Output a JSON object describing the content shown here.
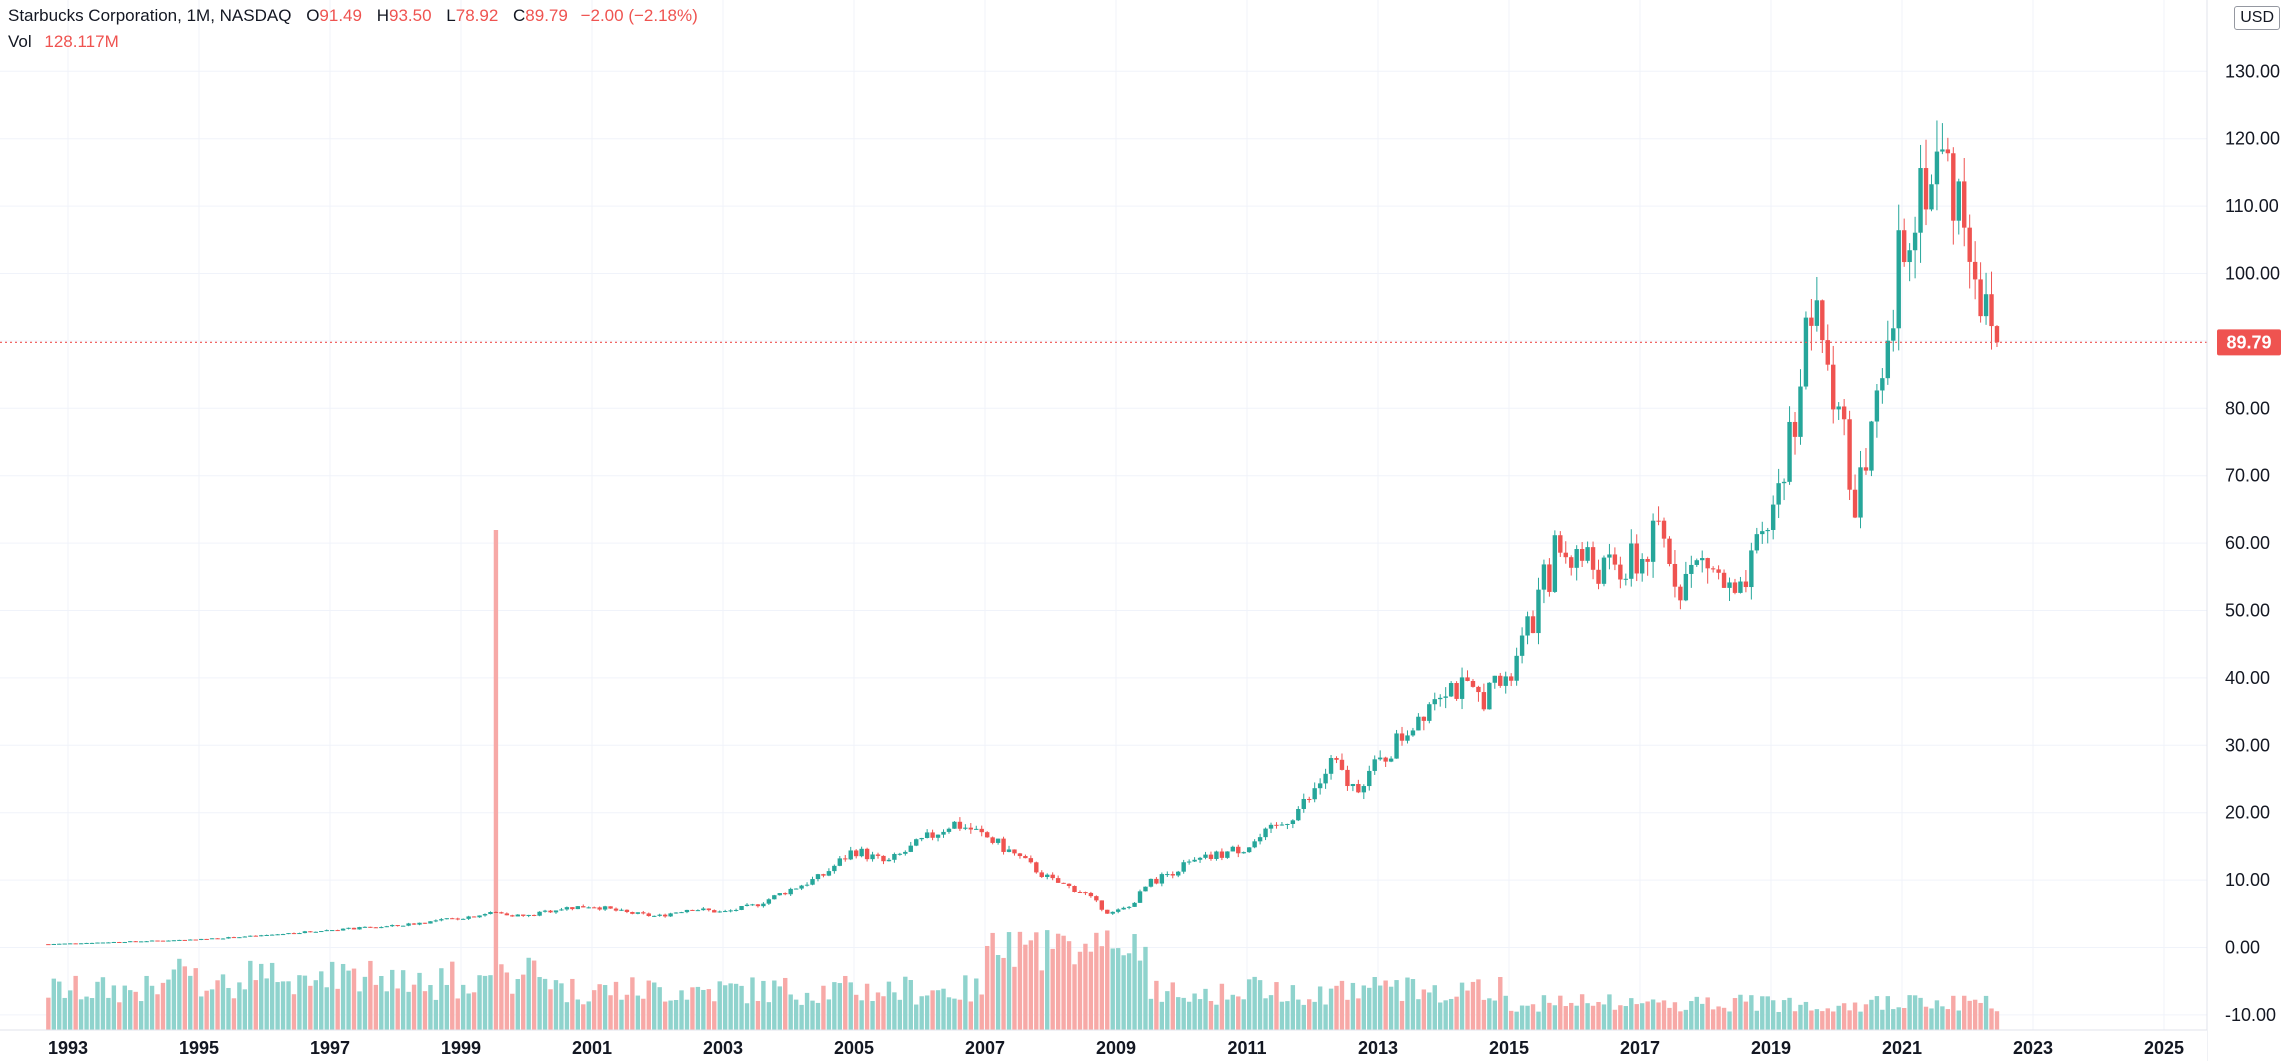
{
  "header": {
    "symbol": "Starbucks Corporation, 1M, NASDAQ",
    "open_label": "O",
    "open": "91.49",
    "high_label": "H",
    "high": "93.50",
    "low_label": "L",
    "low": "78.92",
    "close_label": "C",
    "close": "89.79",
    "change": "−2.00 (−2.18%)",
    "vol_label": "Vol",
    "vol": "128.117M"
  },
  "currency": "USD",
  "price_tag": "89.79",
  "colors": {
    "up": "#26a69a",
    "down": "#ef5350",
    "vol_up": "#8fd3cd",
    "vol_down": "#f7a9a7",
    "grid": "#f0f3fa"
  },
  "chart_data": {
    "type": "candlestick",
    "title": "Starbucks Corporation, 1M, NASDAQ",
    "ylabel": "USD",
    "y_ticks": [
      "130.00",
      "120.00",
      "110.00",
      "100.00",
      "90.00",
      "80.00",
      "70.00",
      "60.00",
      "50.00",
      "40.00",
      "30.00",
      "20.00",
      "10.00",
      "0.00",
      "-10.00"
    ],
    "y_tick_values": [
      130,
      120,
      110,
      100,
      90,
      80,
      70,
      60,
      50,
      40,
      30,
      20,
      10,
      0,
      -10
    ],
    "ylim": [
      -12,
      140
    ],
    "x_ticks": [
      "1993",
      "1995",
      "1997",
      "1999",
      "2001",
      "2003",
      "2005",
      "2007",
      "2009",
      "2011",
      "2013",
      "2015",
      "2017",
      "2019",
      "2021",
      "2023",
      "2025"
    ],
    "x_tick_values": [
      1993,
      1995,
      1997,
      1999,
      2001,
      2003,
      2005,
      2007,
      2009,
      2011,
      2013,
      2015,
      2017,
      2019,
      2021,
      2023,
      2025
    ],
    "xlim": [
      1992.5,
      2026.9
    ],
    "last_price": 89.79,
    "volume_peak_year": 1999.5,
    "price_path": [
      [
        1992.7,
        0.5
      ],
      [
        1994.0,
        0.9
      ],
      [
        1995.0,
        1.2
      ],
      [
        1996.0,
        1.8
      ],
      [
        1997.0,
        2.6
      ],
      [
        1998.0,
        3.2
      ],
      [
        1999.0,
        4.4
      ],
      [
        1999.5,
        5.2
      ],
      [
        2000.0,
        4.6
      ],
      [
        2000.5,
        5.8
      ],
      [
        2001.0,
        6.2
      ],
      [
        2001.5,
        5.2
      ],
      [
        2002.0,
        4.6
      ],
      [
        2002.5,
        5.8
      ],
      [
        2003.0,
        5.2
      ],
      [
        2003.5,
        6.3
      ],
      [
        2004.0,
        8.5
      ],
      [
        2004.5,
        10.5
      ],
      [
        2005.0,
        14.5
      ],
      [
        2005.5,
        12.5
      ],
      [
        2006.0,
        15.5
      ],
      [
        2006.5,
        18.5
      ],
      [
        2006.8,
        17.5
      ],
      [
        2007.0,
        16.5
      ],
      [
        2007.5,
        13.5
      ],
      [
        2008.0,
        10.0
      ],
      [
        2008.5,
        8.2
      ],
      [
        2008.9,
        5.0
      ],
      [
        2009.2,
        6.0
      ],
      [
        2009.5,
        9.5
      ],
      [
        2010.0,
        12.0
      ],
      [
        2010.5,
        13.5
      ],
      [
        2011.0,
        15.0
      ],
      [
        2011.5,
        18.0
      ],
      [
        2012.0,
        22.5
      ],
      [
        2012.3,
        27.5
      ],
      [
        2012.6,
        23.5
      ],
      [
        2013.0,
        27.0
      ],
      [
        2013.5,
        33.0
      ],
      [
        2014.0,
        39.5
      ],
      [
        2014.5,
        37.0
      ],
      [
        2015.0,
        39.5
      ],
      [
        2015.3,
        47.0
      ],
      [
        2015.7,
        58.5
      ],
      [
        2016.0,
        58.5
      ],
      [
        2016.5,
        55.5
      ],
      [
        2017.0,
        57.0
      ],
      [
        2017.3,
        61.5
      ],
      [
        2017.6,
        54.5
      ],
      [
        2018.0,
        57.5
      ],
      [
        2018.5,
        50.5
      ],
      [
        2018.8,
        58.5
      ],
      [
        2019.0,
        64.0
      ],
      [
        2019.3,
        76.0
      ],
      [
        2019.6,
        94.5
      ],
      [
        2019.9,
        85.5
      ],
      [
        2020.1,
        80.0
      ],
      [
        2020.2,
        65.0
      ],
      [
        2020.5,
        73.0
      ],
      [
        2020.8,
        87.0
      ],
      [
        2021.0,
        106.0
      ],
      [
        2021.3,
        114.0
      ],
      [
        2021.6,
        117.0
      ],
      [
        2021.9,
        111.0
      ],
      [
        2022.0,
        108.0
      ],
      [
        2022.3,
        92.0
      ],
      [
        2022.45,
        89.79
      ]
    ]
  }
}
